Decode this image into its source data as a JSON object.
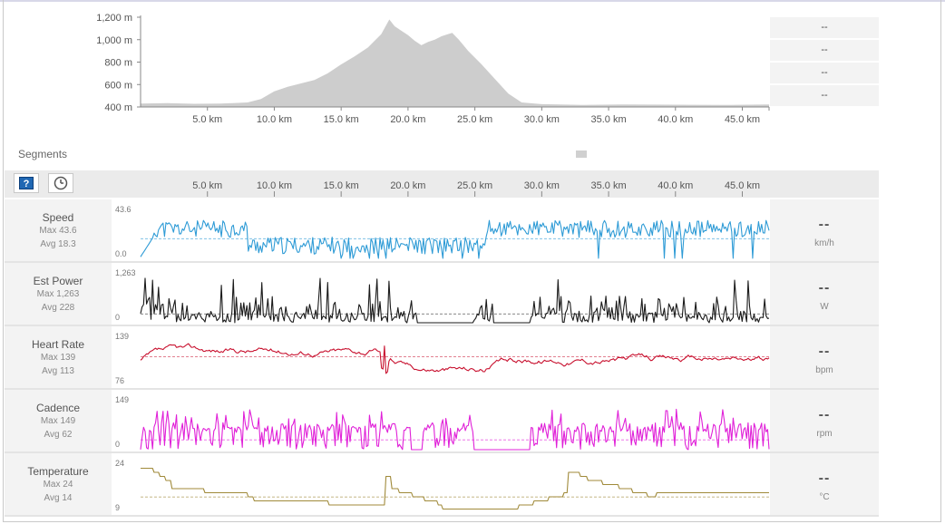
{
  "elevation": {
    "y_ticks": [
      "1,200 m",
      "1,000 m",
      "800 m",
      "600 m",
      "400 m"
    ],
    "x_ticks": [
      "5.0 km",
      "10.0 km",
      "15.0 km",
      "20.0 km",
      "25.0 km",
      "30.0 km",
      "35.0 km",
      "40.0 km",
      "45.0 km"
    ],
    "profile": [
      [
        0,
        430
      ],
      [
        2,
        435
      ],
      [
        4,
        428
      ],
      [
        6,
        430
      ],
      [
        8,
        440
      ],
      [
        9,
        470
      ],
      [
        10,
        540
      ],
      [
        11,
        580
      ],
      [
        12,
        610
      ],
      [
        13,
        640
      ],
      [
        14,
        700
      ],
      [
        15,
        780
      ],
      [
        16,
        850
      ],
      [
        17,
        930
      ],
      [
        18,
        1050
      ],
      [
        18.6,
        1180
      ],
      [
        19,
        1120
      ],
      [
        19.5,
        1080
      ],
      [
        20,
        1040
      ],
      [
        20.5,
        990
      ],
      [
        21,
        950
      ],
      [
        21.5,
        980
      ],
      [
        22,
        1000
      ],
      [
        22.5,
        1030
      ],
      [
        23,
        1050
      ],
      [
        23.3,
        1060
      ],
      [
        23.8,
        1000
      ],
      [
        24.5,
        900
      ],
      [
        25.5,
        780
      ],
      [
        26.5,
        650
      ],
      [
        27.5,
        520
      ],
      [
        28.5,
        440
      ],
      [
        30,
        425
      ],
      [
        33,
        418
      ],
      [
        36,
        422
      ],
      [
        40,
        420
      ],
      [
        44,
        418
      ],
      [
        47,
        422
      ]
    ],
    "stats": [
      "--",
      "--",
      "--",
      "--"
    ]
  },
  "segments": {
    "label": "Segments"
  },
  "header": {
    "help_icon": "question-mark-icon",
    "time_icon": "clock-icon",
    "x_ticks": [
      "5.0 km",
      "10.0 km",
      "15.0 km",
      "20.0 km",
      "25.0 km",
      "30.0 km",
      "35.0 km",
      "40.0 km",
      "45.0 km"
    ]
  },
  "metrics": [
    {
      "name": "Speed",
      "max": "Max 43.6",
      "avg": "Avg 18.3",
      "value": "--",
      "unit": "km/h",
      "top_label": "43.6",
      "bottom_label": "0.0",
      "color": "#2e9bd6",
      "avg_frac": 0.42,
      "seed": 11,
      "mode": "speed"
    },
    {
      "name": "Est Power",
      "max": "Max 1,263",
      "avg": "Avg 228",
      "value": "--",
      "unit": "W",
      "top_label": "1,263",
      "bottom_label": "0",
      "color": "#1a1a1a",
      "avg_frac": 0.18,
      "seed": 23,
      "mode": "power"
    },
    {
      "name": "Heart Rate",
      "max": "Max 139",
      "avg": "Avg 113",
      "value": "--",
      "unit": "bpm",
      "top_label": "139",
      "bottom_label": "76",
      "color": "#c8102e",
      "avg_frac": 0.6,
      "seed": 37,
      "mode": "hr"
    },
    {
      "name": "Cadence",
      "max": "Max 149",
      "avg": "Avg 62",
      "value": "--",
      "unit": "rpm",
      "top_label": "149",
      "bottom_label": "0",
      "color": "#e020d8",
      "avg_frac": 0.2,
      "seed": 53,
      "mode": "cadence"
    },
    {
      "name": "Temperature",
      "max": "Max 24",
      "avg": "Avg 14",
      "value": "--",
      "unit": "°C",
      "top_label": "24",
      "bottom_label": "9",
      "color": "#a08a3a",
      "avg_frac": 0.33,
      "seed": 71,
      "mode": "temp"
    }
  ]
}
